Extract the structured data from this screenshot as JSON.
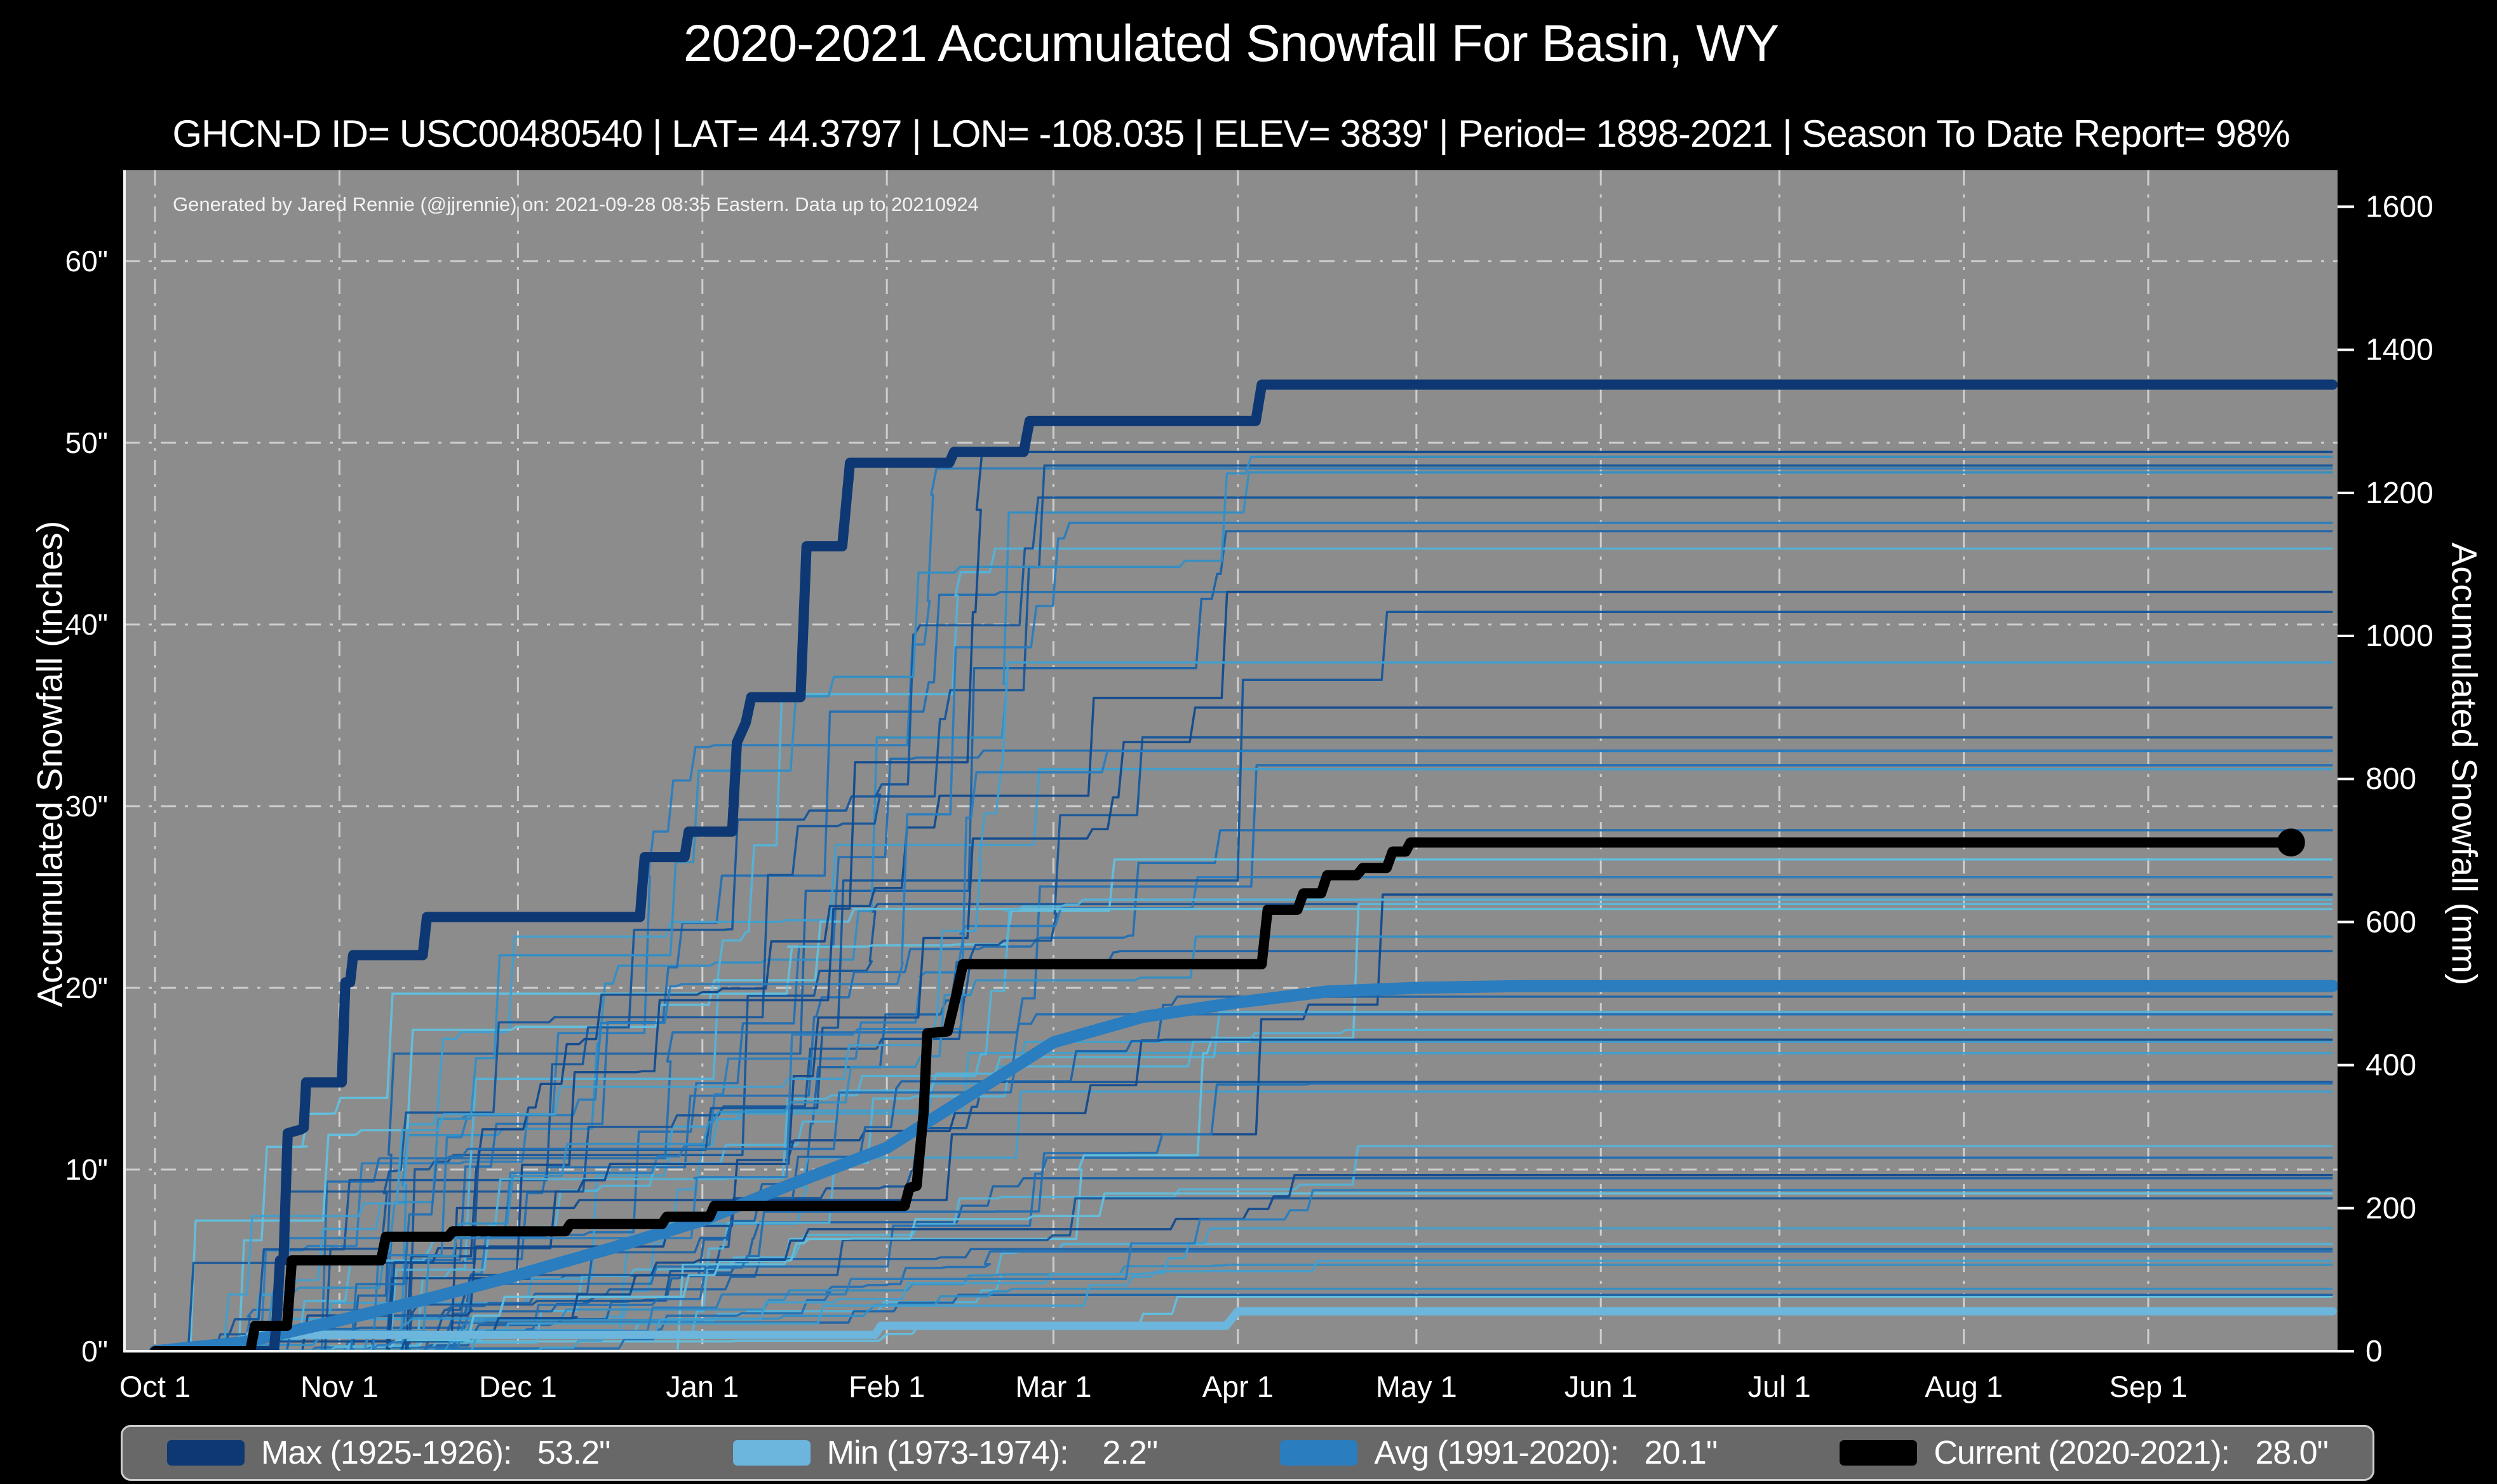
{
  "page": {
    "title": "2020-2021 Accumulated Snowfall For Basin, WY",
    "subtitle": "GHCN-D ID= USC00480540 | LAT= 44.3797 | LON= -108.035 | ELEV= 3839' | Period= 1898-2021 | Season To Date Report= 98%",
    "annotation": "Generated by Jared Rennie (@jjrennie) on: 2021-09-28 08:35 Eastern. Data up to 20210924"
  },
  "axes": {
    "x": {
      "ticks": [
        {
          "label": "Oct 1",
          "day": 0
        },
        {
          "label": "Nov 1",
          "day": 31
        },
        {
          "label": "Dec 1",
          "day": 61
        },
        {
          "label": "Jan 1",
          "day": 92
        },
        {
          "label": "Feb 1",
          "day": 123
        },
        {
          "label": "Mar 1",
          "day": 151
        },
        {
          "label": "Apr 1",
          "day": 182
        },
        {
          "label": "May 1",
          "day": 212
        },
        {
          "label": "Jun 1",
          "day": 243
        },
        {
          "label": "Jul 1",
          "day": 273
        },
        {
          "label": "Aug 1",
          "day": 304
        },
        {
          "label": "Sep 1",
          "day": 335
        }
      ]
    },
    "y_left": {
      "label": "Accumulated Snowfall (inches)",
      "ticks": [
        {
          "label": "0\"",
          "value": 0
        },
        {
          "label": "10\"",
          "value": 10
        },
        {
          "label": "20\"",
          "value": 20
        },
        {
          "label": "30\"",
          "value": 30
        },
        {
          "label": "40\"",
          "value": 40
        },
        {
          "label": "50\"",
          "value": 50
        },
        {
          "label": "60\"",
          "value": 60
        }
      ]
    },
    "y_right": {
      "label": "Accumulated Snowfall (mm)",
      "ticks": [
        {
          "label": "0",
          "mm": 0
        },
        {
          "label": "200",
          "mm": 200
        },
        {
          "label": "400",
          "mm": 400
        },
        {
          "label": "600",
          "mm": 600
        },
        {
          "label": "800",
          "mm": 800
        },
        {
          "label": "1000",
          "mm": 1000
        },
        {
          "label": "1200",
          "mm": 1200
        },
        {
          "label": "1400",
          "mm": 1400
        },
        {
          "label": "1600",
          "mm": 1600
        }
      ]
    }
  },
  "legend": {
    "items": [
      {
        "label": "Max (1925-1926):   53.2\"",
        "color": "#0d3873"
      },
      {
        "label": "Min (1973-1974):    2.2\"",
        "color": "#6cb5dc"
      },
      {
        "label": "Avg (1991-2020):   20.1\"",
        "color": "#2a7dbf"
      },
      {
        "label": "Current (2020-2021):   28.0\"",
        "color": "#000000"
      }
    ]
  },
  "colors": {
    "background": "#000000",
    "plot_bg": "#8c8c8c",
    "grid": "#d6d6d6",
    "spine": "#f5f5f5",
    "text": "#ffffff",
    "max": "#0d3873",
    "min": "#6cb5dc",
    "avg": "#2a7dbf",
    "current": "#000000"
  },
  "chart_data": {
    "type": "line",
    "title": "2020-2021 Accumulated Snowfall For Basin, WY",
    "x_unit": "days since Oct 1",
    "y_unit": "inches",
    "y_right_unit": "mm = inches * 25.4",
    "x_range_days": [
      0,
      365
    ],
    "y_range_inches": [
      0,
      65
    ],
    "grid": "dash-dot white on gray",
    "legend_position": "bottom",
    "series": [
      {
        "name": "Max (1925-1926)",
        "total_in": 53.2,
        "color": "#0d3873",
        "width": 16,
        "points": [
          [
            0,
            0
          ],
          [
            20,
            0
          ],
          [
            20.5,
            2
          ],
          [
            21,
            5
          ],
          [
            21.6,
            5
          ],
          [
            22.3,
            12
          ],
          [
            24.5,
            12.2
          ],
          [
            25,
            12.3
          ],
          [
            25.4,
            14.8
          ],
          [
            31.4,
            14.8
          ],
          [
            32,
            20.3
          ],
          [
            32.8,
            20.3
          ],
          [
            33.3,
            21.8
          ],
          [
            45,
            21.8
          ],
          [
            45.7,
            23.9
          ],
          [
            81.5,
            23.9
          ],
          [
            82.3,
            27.2
          ],
          [
            89,
            27.2
          ],
          [
            89.7,
            28.6
          ],
          [
            97,
            28.6
          ],
          [
            97.8,
            33.5
          ],
          [
            99.3,
            34.6
          ],
          [
            100.2,
            36.0
          ],
          [
            108.5,
            36.0
          ],
          [
            109.5,
            44.3
          ],
          [
            115.5,
            44.3
          ],
          [
            116.8,
            48.9
          ],
          [
            133.5,
            48.9
          ],
          [
            134.3,
            49.5
          ],
          [
            146,
            49.5
          ],
          [
            147,
            51.2
          ],
          [
            185,
            51.2
          ],
          [
            186,
            53.2
          ],
          [
            366,
            53.2
          ]
        ]
      },
      {
        "name": "Min (1973-1974)",
        "total_in": 2.2,
        "color": "#6cb5dc",
        "width": 13,
        "points": [
          [
            0,
            0
          ],
          [
            15,
            0
          ],
          [
            16,
            0.9
          ],
          [
            121,
            0.9
          ],
          [
            122,
            1.4
          ],
          [
            180,
            1.4
          ],
          [
            182,
            2.2
          ],
          [
            366,
            2.2
          ]
        ]
      },
      {
        "name": "Avg (1991-2020)",
        "total_in": 20.1,
        "color": "#2a7dbf",
        "width": 19,
        "points": [
          [
            0,
            0
          ],
          [
            15,
            0.5
          ],
          [
            31,
            1.7
          ],
          [
            46,
            2.9
          ],
          [
            61,
            4.2
          ],
          [
            77,
            5.7
          ],
          [
            92,
            7.2
          ],
          [
            107,
            9.2
          ],
          [
            123,
            11.2
          ],
          [
            138,
            14.3
          ],
          [
            151,
            17.0
          ],
          [
            166,
            18.4
          ],
          [
            182,
            19.2
          ],
          [
            197,
            19.8
          ],
          [
            212,
            20.0
          ],
          [
            230,
            20.1
          ],
          [
            366,
            20.1
          ]
        ]
      },
      {
        "name": "Current (2020-2021)",
        "total_in": 28.0,
        "color": "#000000",
        "width": 16,
        "end_dot": {
          "day": 359,
          "inches": 28.0,
          "radius": 22
        },
        "points": [
          [
            0,
            0
          ],
          [
            16,
            0
          ],
          [
            16.8,
            1.4
          ],
          [
            22.2,
            1.4
          ],
          [
            23,
            5.0
          ],
          [
            38,
            5.0
          ],
          [
            38.8,
            6.3
          ],
          [
            49.3,
            6.3
          ],
          [
            50,
            6.6
          ],
          [
            69,
            6.6
          ],
          [
            69.8,
            7.0
          ],
          [
            85.2,
            7.0
          ],
          [
            86,
            7.4
          ],
          [
            93.2,
            7.4
          ],
          [
            94,
            8.0
          ],
          [
            126,
            8.0
          ],
          [
            126.8,
            9.0
          ],
          [
            128,
            9.1
          ],
          [
            129.2,
            13.2
          ],
          [
            129.8,
            17.5
          ],
          [
            133.2,
            17.6
          ],
          [
            134.6,
            19.5
          ],
          [
            135.8,
            21.3
          ],
          [
            186,
            21.3
          ],
          [
            187,
            24.3
          ],
          [
            192,
            24.3
          ],
          [
            193,
            25.2
          ],
          [
            196,
            25.2
          ],
          [
            197,
            26.2
          ],
          [
            202,
            26.2
          ],
          [
            203,
            26.6
          ],
          [
            207,
            26.6
          ],
          [
            208,
            27.5
          ],
          [
            210.2,
            27.5
          ],
          [
            211,
            28.0
          ],
          [
            359,
            28.0
          ]
        ]
      }
    ],
    "background_seasons": {
      "description": "Historical seasons 1898-2020 drawn as thin blue step lines (unlabeled ensemble)",
      "count": 55,
      "seed": 11,
      "width": 3.5,
      "total_range_in": [
        3,
        50
      ],
      "palette": [
        "#62c0de",
        "#54b3d8",
        "#429fcd",
        "#338fc5",
        "#2a7dbf",
        "#2270b4",
        "#1b63a8",
        "#15569b",
        "#104a8e"
      ]
    }
  }
}
